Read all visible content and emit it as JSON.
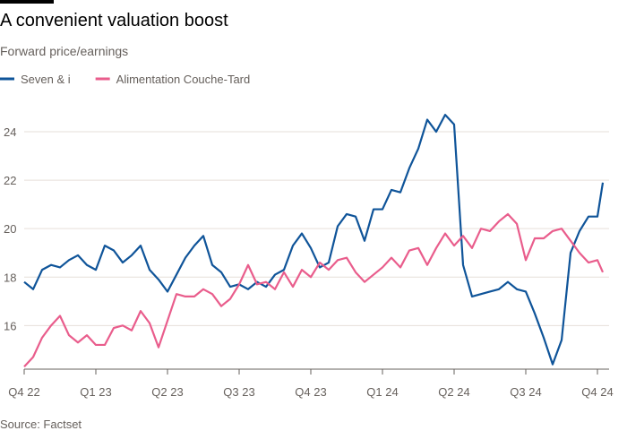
{
  "chart_data": {
    "type": "line",
    "title": "A convenient valuation boost",
    "subtitle": "Forward price/earnings",
    "source": "Source: Factset",
    "x": [
      0,
      0.125,
      0.25,
      0.375,
      0.5,
      0.625,
      0.75,
      0.875,
      1,
      1.125,
      1.25,
      1.375,
      1.5,
      1.625,
      1.75,
      1.875,
      2,
      2.125,
      2.25,
      2.375,
      2.5,
      2.625,
      2.75,
      2.875,
      3,
      3.125,
      3.25,
      3.375,
      3.5,
      3.625,
      3.75,
      3.875,
      4,
      4.125,
      4.25,
      4.375,
      4.5,
      4.625,
      4.75,
      4.875,
      5,
      5.125,
      5.25,
      5.375,
      5.5,
      5.625,
      5.75,
      5.875,
      6,
      6.125,
      6.25,
      6.375,
      6.5,
      6.625,
      6.75,
      6.875,
      7,
      7.125,
      7.25,
      7.375,
      7.5,
      7.625,
      7.75,
      7.875,
      8,
      8.075
    ],
    "series": [
      {
        "name": "Seven & i",
        "color": "#0f5499",
        "values": [
          17.8,
          17.5,
          18.3,
          18.5,
          18.4,
          18.7,
          18.9,
          18.5,
          18.3,
          19.3,
          19.1,
          18.6,
          18.9,
          19.3,
          18.3,
          17.9,
          17.4,
          18.1,
          18.8,
          19.3,
          19.7,
          18.5,
          18.2,
          17.6,
          17.7,
          17.5,
          17.8,
          17.6,
          18.1,
          18.3,
          19.3,
          19.8,
          19.2,
          18.4,
          18.6,
          20.1,
          20.6,
          20.5,
          19.5,
          20.8,
          20.8,
          21.6,
          21.5,
          22.5,
          23.3,
          24.5,
          24.0,
          24.7,
          24.3,
          18.5,
          17.2,
          17.3,
          17.4,
          17.5,
          17.8,
          17.5,
          17.4,
          16.5,
          15.5,
          14.4,
          15.4,
          19.0,
          19.9,
          20.5,
          20.5,
          21.9
        ]
      },
      {
        "name": "Alimentation Couche-Tard",
        "color": "#e95d8c",
        "values": [
          14.3,
          14.7,
          15.5,
          16.0,
          16.4,
          15.6,
          15.3,
          15.6,
          15.2,
          15.2,
          15.9,
          16.0,
          15.8,
          16.6,
          16.1,
          15.1,
          16.2,
          17.3,
          17.2,
          17.2,
          17.5,
          17.3,
          16.8,
          17.1,
          17.7,
          18.5,
          17.7,
          17.8,
          17.5,
          18.2,
          17.6,
          18.3,
          18.0,
          18.6,
          18.3,
          18.7,
          18.8,
          18.2,
          17.8,
          18.1,
          18.4,
          18.8,
          18.4,
          19.1,
          19.2,
          18.5,
          19.2,
          19.8,
          19.3,
          19.7,
          19.2,
          20.0,
          19.9,
          20.3,
          20.6,
          20.2,
          18.7,
          19.6,
          19.6,
          19.9,
          20.0,
          19.5,
          19.0,
          18.6,
          18.7,
          18.2
        ]
      }
    ],
    "xlim": [
      0,
      8.16
    ],
    "xticks": [
      {
        "value": 0,
        "label": "Q4 22"
      },
      {
        "value": 1,
        "label": "Q1 23"
      },
      {
        "value": 2,
        "label": "Q2 23"
      },
      {
        "value": 3,
        "label": "Q3 23"
      },
      {
        "value": 4,
        "label": "Q4 23"
      },
      {
        "value": 5,
        "label": "Q1 24"
      },
      {
        "value": 6,
        "label": "Q2 24"
      },
      {
        "value": 7,
        "label": "Q3 24"
      },
      {
        "value": 8,
        "label": "Q4 24"
      }
    ],
    "ylim": [
      14.2,
      25
    ],
    "yticks": [
      16,
      18,
      20,
      22,
      24
    ],
    "grid": true
  }
}
